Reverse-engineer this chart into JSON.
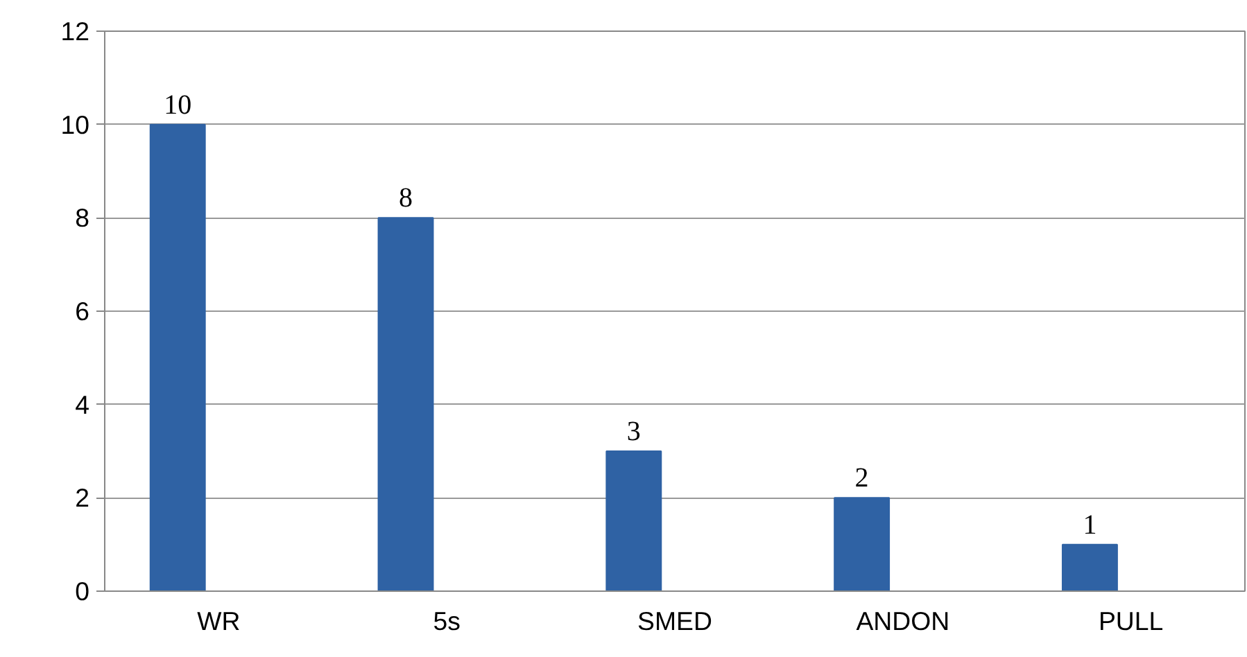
{
  "chart_data": {
    "type": "bar",
    "categories": [
      "WR",
      "5s",
      "SMED",
      "ANDON",
      "PULL"
    ],
    "values": [
      10,
      8,
      3,
      2,
      1
    ],
    "color": "#2f62a4",
    "ylim": [
      0,
      12
    ],
    "yticks": [
      0,
      2,
      4,
      6,
      8,
      10,
      12
    ],
    "grid": "y",
    "data_labels": true
  }
}
